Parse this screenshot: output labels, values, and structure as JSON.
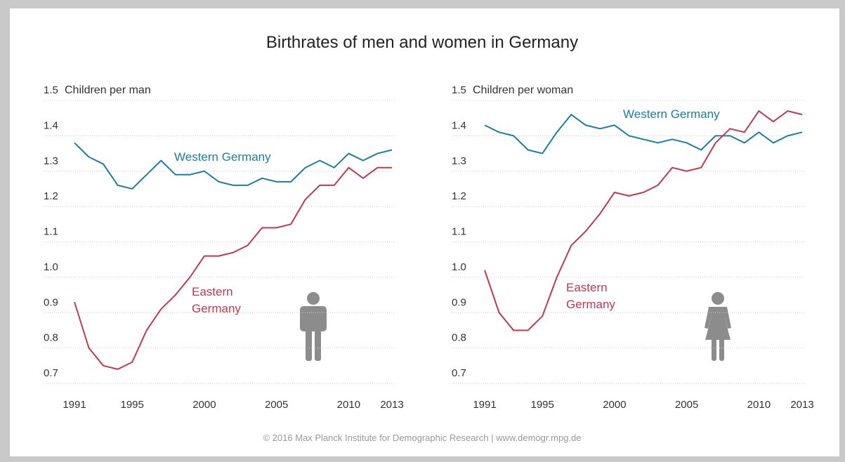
{
  "title": "Birthrates of men and women in Germany",
  "footer": "© 2016 Max Planck Institute for Demographic Research | www.demogr.mpg.de",
  "chart_data": [
    {
      "type": "line",
      "ylabel": "Children per man",
      "x": [
        1991,
        1992,
        1993,
        1994,
        1995,
        1996,
        1997,
        1998,
        1999,
        2000,
        2001,
        2002,
        2003,
        2004,
        2005,
        2006,
        2007,
        2008,
        2009,
        2010,
        2011,
        2012,
        2013
      ],
      "xlim": [
        1991,
        2013
      ],
      "xticks": [
        1991,
        1995,
        2000,
        2005,
        2010,
        2013
      ],
      "ylim": [
        0.7,
        1.5
      ],
      "yticks": [
        0.7,
        0.8,
        0.9,
        {
          "value": 1.0,
          "label": "1.0"
        },
        1.1,
        1.2,
        1.3,
        1.4,
        1.5
      ],
      "grid": true,
      "series": [
        {
          "name": "Western Germany",
          "color": "#1a7ea3",
          "values": [
            1.38,
            1.34,
            1.32,
            1.26,
            1.25,
            1.29,
            1.33,
            1.29,
            1.29,
            1.3,
            1.27,
            1.26,
            1.26,
            1.28,
            1.27,
            1.27,
            1.31,
            1.33,
            1.31,
            1.35,
            1.33,
            1.35,
            1.36
          ]
        },
        {
          "name": "Eastern Germany",
          "color": "#c0394f",
          "values": [
            0.93,
            0.8,
            0.75,
            0.74,
            0.76,
            0.85,
            0.91,
            0.95,
            1.0,
            1.06,
            1.06,
            1.07,
            1.09,
            1.14,
            1.14,
            1.15,
            1.22,
            1.26,
            1.26,
            1.31,
            1.28,
            1.31,
            1.31
          ]
        }
      ]
    },
    {
      "type": "line",
      "ylabel": "Children per woman",
      "x": [
        1991,
        1992,
        1993,
        1994,
        1995,
        1996,
        1997,
        1998,
        1999,
        2000,
        2001,
        2002,
        2003,
        2004,
        2005,
        2006,
        2007,
        2008,
        2009,
        2010,
        2011,
        2012,
        2013
      ],
      "xlim": [
        1991,
        2013
      ],
      "xticks": [
        1991,
        1995,
        2000,
        2005,
        2010,
        2013
      ],
      "ylim": [
        0.7,
        1.5
      ],
      "yticks": [
        0.7,
        0.8,
        0.9,
        {
          "value": 1.0,
          "label": "1.0"
        },
        1.1,
        1.2,
        1.3,
        1.4,
        1.5
      ],
      "grid": true,
      "series": [
        {
          "name": "Western Germany",
          "color": "#1a7ea3",
          "values": [
            1.43,
            1.41,
            1.4,
            1.36,
            1.35,
            1.41,
            1.46,
            1.43,
            1.42,
            1.43,
            1.4,
            1.39,
            1.38,
            1.39,
            1.38,
            1.36,
            1.4,
            1.4,
            1.38,
            1.41,
            1.38,
            1.4,
            1.41
          ]
        },
        {
          "name": "Eastern Germany",
          "color": "#c0394f",
          "values": [
            1.02,
            0.9,
            0.85,
            0.85,
            0.89,
            1.0,
            1.09,
            1.13,
            1.18,
            1.24,
            1.23,
            1.24,
            1.26,
            1.31,
            1.3,
            1.31,
            1.38,
            1.42,
            1.41,
            1.47,
            1.44,
            1.47,
            1.46
          ]
        }
      ]
    }
  ]
}
